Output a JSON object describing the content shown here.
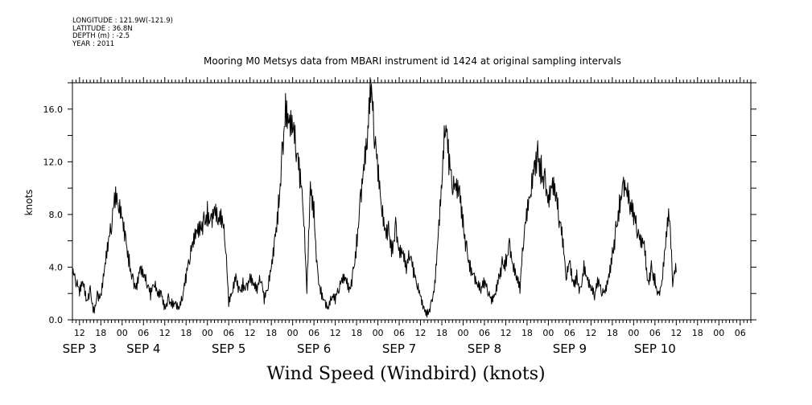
{
  "header": {
    "longitude": "LONGITUDE : 121.9W(-121.9)",
    "latitude": "LATITUDE : 36.8N",
    "depth": "DEPTH (m) : -2.5",
    "year": "YEAR : 2011"
  },
  "chart_data": {
    "type": "line",
    "title": "Mooring M0 Metsys data from MBARI instrument id 1424 at original sampling intervals",
    "xlabel": "Wind Speed (Windbird) (knots)",
    "ylabel": "knots",
    "ylim": [
      0,
      18
    ],
    "yticks": [
      "0.0",
      "4.0",
      "8.0",
      "12.0",
      "16.0"
    ],
    "xlim_hours": [
      -14,
      177
    ],
    "xticks": [
      {
        "h": -12,
        "label": "12"
      },
      {
        "h": -6,
        "label": "18"
      },
      {
        "h": 0,
        "label": "00"
      },
      {
        "h": 6,
        "label": "06"
      },
      {
        "h": 12,
        "label": "12"
      },
      {
        "h": 18,
        "label": "18"
      },
      {
        "h": 24,
        "label": "00"
      },
      {
        "h": 30,
        "label": "06"
      },
      {
        "h": 36,
        "label": "12"
      },
      {
        "h": 42,
        "label": "18"
      },
      {
        "h": 48,
        "label": "00"
      },
      {
        "h": 54,
        "label": "06"
      },
      {
        "h": 60,
        "label": "12"
      },
      {
        "h": 66,
        "label": "18"
      },
      {
        "h": 72,
        "label": "00"
      },
      {
        "h": 78,
        "label": "06"
      },
      {
        "h": 84,
        "label": "12"
      },
      {
        "h": 90,
        "label": "18"
      },
      {
        "h": 96,
        "label": "00"
      },
      {
        "h": 102,
        "label": "06"
      },
      {
        "h": 108,
        "label": "12"
      },
      {
        "h": 114,
        "label": "18"
      },
      {
        "h": 120,
        "label": "00"
      },
      {
        "h": 126,
        "label": "06"
      },
      {
        "h": 132,
        "label": "12"
      },
      {
        "h": 138,
        "label": "18"
      },
      {
        "h": 144,
        "label": "00"
      },
      {
        "h": 150,
        "label": "06"
      },
      {
        "h": 156,
        "label": "12"
      },
      {
        "h": 162,
        "label": "18"
      },
      {
        "h": 168,
        "label": "00"
      },
      {
        "h": 174,
        "label": "06"
      }
    ],
    "date_labels": [
      {
        "h": -12,
        "label": "SEP  3"
      },
      {
        "h": 6,
        "label": "SEP  4"
      },
      {
        "h": 30,
        "label": "SEP  5"
      },
      {
        "h": 54,
        "label": "SEP  6"
      },
      {
        "h": 78,
        "label": "SEP  7"
      },
      {
        "h": 102,
        "label": "SEP  8"
      },
      {
        "h": 126,
        "label": "SEP  9"
      },
      {
        "h": 150,
        "label": "SEP 10"
      }
    ],
    "series": [
      {
        "points": [
          [
            -14,
            3.2
          ],
          [
            -13,
            2.5
          ],
          [
            -12,
            1.8
          ],
          [
            -11,
            2.8
          ],
          [
            -10,
            1.5
          ],
          [
            -9,
            2.6
          ],
          [
            -8,
            1.0
          ],
          [
            -7,
            2.2
          ],
          [
            -6,
            2.0
          ],
          [
            -5,
            3.8
          ],
          [
            -4,
            5.2
          ],
          [
            -3,
            6.5
          ],
          [
            -2,
            8.5
          ],
          [
            -1,
            8.2
          ],
          [
            0,
            7.8
          ],
          [
            1,
            6.5
          ],
          [
            2,
            5.0
          ],
          [
            3,
            3.5
          ],
          [
            4,
            2.8
          ],
          [
            5,
            4.0
          ],
          [
            6,
            3.2
          ],
          [
            7,
            2.4
          ],
          [
            8,
            1.5
          ],
          [
            9,
            2.5
          ],
          [
            10,
            1.8
          ],
          [
            11,
            2.2
          ],
          [
            12,
            1.2
          ],
          [
            13,
            2.0
          ],
          [
            14,
            1.6
          ],
          [
            15,
            1.4
          ],
          [
            16,
            0.8
          ],
          [
            17,
            1.5
          ],
          [
            18,
            2.8
          ],
          [
            19,
            4.2
          ],
          [
            20,
            5.5
          ],
          [
            21,
            6.8
          ],
          [
            22,
            7.5
          ],
          [
            23,
            8.2
          ],
          [
            24,
            9.0
          ],
          [
            25,
            8.0
          ],
          [
            26,
            8.6
          ],
          [
            27,
            7.2
          ],
          [
            28,
            7.0
          ],
          [
            29,
            5.5
          ],
          [
            30,
            1.0
          ],
          [
            31,
            2.0
          ],
          [
            32,
            3.5
          ],
          [
            33,
            2.5
          ],
          [
            34,
            3.2
          ],
          [
            35,
            2.8
          ],
          [
            36,
            3.5
          ],
          [
            37,
            2.6
          ],
          [
            38,
            2.0
          ],
          [
            39,
            2.8
          ],
          [
            40,
            1.2
          ],
          [
            41,
            2.2
          ],
          [
            42,
            4.0
          ],
          [
            43,
            6.5
          ],
          [
            44,
            9.5
          ],
          [
            45,
            13.5
          ],
          [
            46,
            17.2
          ],
          [
            47,
            15.0
          ],
          [
            48,
            14.2
          ],
          [
            49,
            12.0
          ],
          [
            50,
            10.0
          ],
          [
            51,
            8.0
          ],
          [
            52,
            2.0
          ],
          [
            53,
            10.5
          ],
          [
            54,
            9.0
          ],
          [
            55,
            4.0
          ],
          [
            56,
            2.5
          ],
          [
            57,
            1.5
          ],
          [
            58,
            0.8
          ],
          [
            59,
            1.5
          ],
          [
            60,
            1.2
          ],
          [
            61,
            2.0
          ],
          [
            62,
            2.8
          ],
          [
            63,
            3.2
          ],
          [
            64,
            2.5
          ],
          [
            65,
            4.0
          ],
          [
            66,
            6.5
          ],
          [
            67,
            9.5
          ],
          [
            68,
            11.8
          ],
          [
            69,
            13.0
          ],
          [
            70,
            16.5
          ],
          [
            71,
            13.0
          ],
          [
            72,
            10.5
          ],
          [
            73,
            8.5
          ],
          [
            74,
            7.0
          ],
          [
            75,
            7.5
          ],
          [
            76,
            6.0
          ],
          [
            77,
            7.8
          ],
          [
            78,
            5.5
          ],
          [
            79,
            5.0
          ],
          [
            80,
            3.5
          ],
          [
            81,
            4.5
          ],
          [
            82,
            3.2
          ],
          [
            83,
            2.5
          ],
          [
            84,
            1.8
          ],
          [
            85,
            1.0
          ],
          [
            86,
            0.8
          ],
          [
            87,
            1.5
          ],
          [
            88,
            3.0
          ],
          [
            89,
            6.5
          ],
          [
            90,
            10.0
          ],
          [
            91,
            14.0
          ],
          [
            92,
            11.0
          ],
          [
            93,
            9.5
          ],
          [
            94,
            9.8
          ],
          [
            95,
            10.2
          ],
          [
            96,
            8.0
          ],
          [
            97,
            6.0
          ],
          [
            98,
            4.5
          ],
          [
            99,
            3.5
          ],
          [
            100,
            2.6
          ],
          [
            101,
            2.0
          ],
          [
            102,
            2.4
          ],
          [
            103,
            1.8
          ],
          [
            104,
            1.2
          ],
          [
            105,
            2.0
          ],
          [
            106,
            3.5
          ],
          [
            107,
            4.8
          ],
          [
            108,
            5.0
          ],
          [
            109,
            6.2
          ],
          [
            110,
            4.2
          ],
          [
            111,
            3.0
          ],
          [
            112,
            2.0
          ],
          [
            113,
            5.5
          ],
          [
            114,
            7.5
          ],
          [
            115,
            9.5
          ],
          [
            116,
            12.0
          ],
          [
            117,
            13.6
          ],
          [
            118,
            12.5
          ],
          [
            119,
            11.5
          ],
          [
            120,
            9.5
          ],
          [
            121,
            10.0
          ],
          [
            122,
            9.0
          ],
          [
            123,
            7.0
          ],
          [
            124,
            5.5
          ],
          [
            125,
            3.0
          ],
          [
            126,
            4.5
          ],
          [
            127,
            3.0
          ],
          [
            128,
            3.8
          ],
          [
            129,
            2.5
          ],
          [
            130,
            4.5
          ],
          [
            131,
            3.0
          ],
          [
            132,
            2.2
          ],
          [
            133,
            1.5
          ],
          [
            134,
            2.5
          ],
          [
            135,
            1.8
          ],
          [
            136,
            2.0
          ],
          [
            137,
            3.5
          ],
          [
            138,
            5.5
          ],
          [
            139,
            7.5
          ],
          [
            140,
            9.5
          ],
          [
            141,
            10.5
          ],
          [
            142,
            9.8
          ],
          [
            143,
            8.0
          ],
          [
            144,
            7.2
          ],
          [
            145,
            6.2
          ],
          [
            146,
            5.5
          ],
          [
            147,
            6.0
          ],
          [
            148,
            3.0
          ],
          [
            149,
            4.5
          ],
          [
            150,
            3.5
          ],
          [
            151,
            2.0
          ],
          [
            152,
            3.0
          ],
          [
            153,
            5.5
          ],
          [
            154,
            7.5
          ],
          [
            155,
            2.5
          ],
          [
            156,
            3.6
          ]
        ]
      }
    ]
  }
}
